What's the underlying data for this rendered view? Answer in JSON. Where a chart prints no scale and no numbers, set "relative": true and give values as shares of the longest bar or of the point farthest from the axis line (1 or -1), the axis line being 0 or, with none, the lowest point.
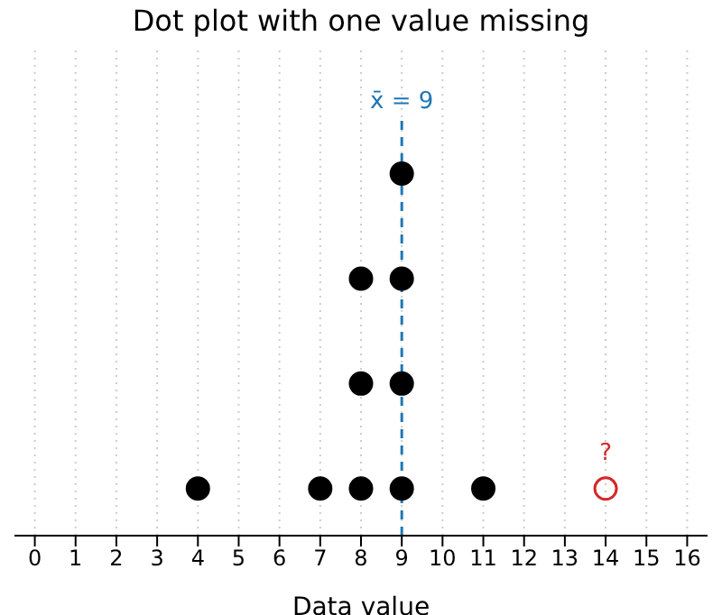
{
  "chart_data": {
    "type": "scatter",
    "title": "Dot plot with one value missing",
    "xlabel": "Data value",
    "relative": true,
    "series": [
      {
        "color": "#000000",
        "x": [
          4,
          7,
          8,
          8,
          8,
          9,
          9,
          9,
          9,
          11
        ],
        "values": [
          0.13,
          0.13,
          0.13,
          0.42,
          0.71,
          0.13,
          0.42,
          0.71,
          1,
          0.13
        ]
      },
      {
        "color": "#d62728",
        "x": [
          14
        ],
        "values": [
          0.13
        ]
      }
    ],
    "annotations": [
      {
        "text": "?",
        "x": 14,
        "y": 0.13
      }
    ],
    "ref_lines": [
      {
        "axis": "x",
        "value": 9,
        "label": "x̄ = 9",
        "color": "#1f77b4",
        "line_style": "dashed"
      }
    ],
    "xlim": [
      -0.5,
      16.5
    ],
    "xticks": [
      0,
      1,
      2,
      3,
      4,
      5,
      6,
      7,
      8,
      9,
      10,
      11,
      12,
      13,
      14,
      15,
      16
    ],
    "grid": "x",
    "marker": "circle"
  }
}
